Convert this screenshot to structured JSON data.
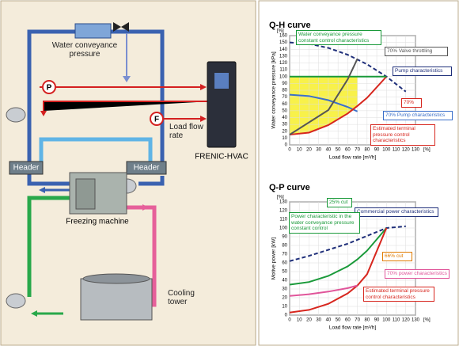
{
  "diagram": {
    "labels": {
      "water_conveyance_pressure": "Water conveyance pressure",
      "p": "P",
      "f": "F",
      "load_flow_rate": "Load flow rate",
      "inverter": "FRENIC-HVAC",
      "header_left": "Header",
      "header_right": "Header",
      "freezing_machine": "Freezing machine",
      "cooling_tower": "Cooling tower"
    }
  },
  "chart_data": [
    {
      "type": "line",
      "title": "Q-H curve",
      "ylabel": "Water conveyance pressure [kPa]",
      "y_unit": "[%]",
      "xlabel": "Load flow rate [m³/h]",
      "x_unit": "[%]",
      "xlim": [
        0,
        130
      ],
      "xticks": [
        0,
        10,
        20,
        30,
        40,
        50,
        60,
        70,
        80,
        90,
        100,
        110,
        120,
        130
      ],
      "ylim": [
        0,
        160
      ],
      "yticks": [
        0,
        10,
        20,
        30,
        40,
        50,
        60,
        70,
        80,
        90,
        100,
        110,
        120,
        130,
        140,
        150,
        160
      ],
      "grid": true,
      "series": [
        {
          "name": "Pump characteristics",
          "color": "#1f2f7a",
          "dashed": true,
          "x": [
            0,
            20,
            40,
            60,
            80,
            100,
            120
          ],
          "values": [
            150,
            148,
            142,
            132,
            118,
            100,
            78
          ]
        },
        {
          "name": "70% Pump characteristics",
          "color": "#3b6fc9",
          "x": [
            0,
            20,
            40,
            60,
            70
          ],
          "values": [
            73.5,
            71.5,
            65.5,
            55.5,
            49
          ]
        },
        {
          "name": "Estimated terminal pressure control characteristics",
          "color": "#d7261e",
          "x": [
            0,
            20,
            40,
            60,
            70,
            80,
            100
          ],
          "values": [
            15,
            18,
            29,
            46,
            57,
            69,
            100
          ]
        },
        {
          "name": "Water conveyance pressure constant control characteristics",
          "color": "#1a9a3a",
          "x": [
            0,
            100
          ],
          "values": [
            100,
            100
          ]
        },
        {
          "name": "70% Valve throttling",
          "color": "#555555",
          "x": [
            0,
            40,
            60,
            70
          ],
          "values": [
            15,
            51,
            96,
            126
          ]
        }
      ],
      "annotations": [
        {
          "text": "70%",
          "color": "#d7261e"
        }
      ]
    },
    {
      "type": "line",
      "title": "Q-P curve",
      "ylabel": "Motive power [kW]",
      "y_unit": "[%]",
      "xlabel": "Load flow rate [m³/h]",
      "x_unit": "[%]",
      "xlim": [
        0,
        130
      ],
      "xticks": [
        0,
        10,
        20,
        30,
        40,
        50,
        60,
        70,
        80,
        90,
        100,
        110,
        120,
        130
      ],
      "ylim": [
        0,
        130
      ],
      "yticks": [
        0,
        10,
        20,
        30,
        40,
        50,
        60,
        70,
        80,
        90,
        100,
        110,
        120,
        130
      ],
      "grid": true,
      "series": [
        {
          "name": "Commercial power characteristics",
          "color": "#1f2f7a",
          "dashed": true,
          "x": [
            0,
            20,
            40,
            60,
            80,
            100,
            120
          ],
          "values": [
            62,
            68,
            75,
            82,
            91,
            100,
            102
          ]
        },
        {
          "name": "Power characteristic in the water conveyance pressure constant control",
          "color": "#1a9a3a",
          "x": [
            0,
            20,
            40,
            60,
            70,
            80,
            100
          ],
          "values": [
            35,
            38,
            45,
            56,
            64,
            74,
            100
          ]
        },
        {
          "name": "Estimated terminal pressure control characteristics",
          "color": "#d7261e",
          "x": [
            0,
            20,
            40,
            60,
            70,
            80,
            100
          ],
          "values": [
            3,
            6,
            13,
            25,
            34,
            47,
            100
          ]
        },
        {
          "name": "70% power characteristics",
          "color": "#e0559a",
          "x": [
            0,
            20,
            40,
            60,
            70
          ],
          "values": [
            22,
            24,
            27,
            31,
            34
          ]
        }
      ],
      "annotations": [
        {
          "text": "25% cut",
          "color": "#1a9a3a"
        },
        {
          "text": "66% cut",
          "color": "#e07b00"
        }
      ]
    }
  ]
}
